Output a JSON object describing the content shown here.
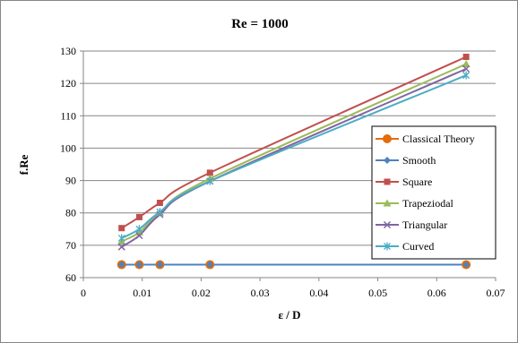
{
  "chart_data": {
    "type": "line",
    "title": "Re = 1000",
    "xlabel": "ε / D",
    "ylabel": "f.Re",
    "xlim": [
      0,
      0.07
    ],
    "ylim": [
      60,
      130
    ],
    "x_ticks": [
      "0",
      "0.01",
      "0.02",
      "0.03",
      "0.04",
      "0.05",
      "0.06",
      "0.07"
    ],
    "y_ticks": [
      "60",
      "70",
      "80",
      "90",
      "100",
      "110",
      "120",
      "130"
    ],
    "grid": "horizontal",
    "legend_position": "right",
    "series": [
      {
        "name": "Classical Theory",
        "color": "#E46C0A",
        "marker": "circle",
        "x": [
          0.0065,
          0.0095,
          0.013,
          0.0215,
          0.065
        ],
        "y": [
          64,
          64,
          64,
          64,
          64
        ]
      },
      {
        "name": "Smooth",
        "color": "#4F81BD",
        "marker": "diamond",
        "x": [
          0.0065,
          0.0095,
          0.013,
          0.0215,
          0.065
        ],
        "y": [
          64,
          64,
          64,
          64,
          64
        ]
      },
      {
        "name": "Square",
        "color": "#C0504D",
        "marker": "square",
        "x": [
          0.0065,
          0.0095,
          0.013,
          0.0215,
          0.065
        ],
        "y": [
          75.3,
          78.7,
          83.1,
          92.4,
          128.2
        ]
      },
      {
        "name": "Trapeziodal",
        "color": "#9BBB59",
        "marker": "triangle",
        "x": [
          0.0065,
          0.0095,
          0.013,
          0.0215,
          0.065
        ],
        "y": [
          71.2,
          74.0,
          80.0,
          90.6,
          126.0
        ]
      },
      {
        "name": "Triangular",
        "color": "#8064A2",
        "marker": "x",
        "x": [
          0.0065,
          0.0095,
          0.013,
          0.0215,
          0.065
        ],
        "y": [
          69.5,
          73.0,
          79.5,
          89.8,
          124.5
        ]
      },
      {
        "name": "Curved",
        "color": "#4BACC6",
        "marker": "star",
        "x": [
          0.0065,
          0.0095,
          0.013,
          0.0215,
          0.065
        ],
        "y": [
          72.2,
          75.0,
          80.3,
          89.8,
          122.5
        ]
      }
    ]
  }
}
